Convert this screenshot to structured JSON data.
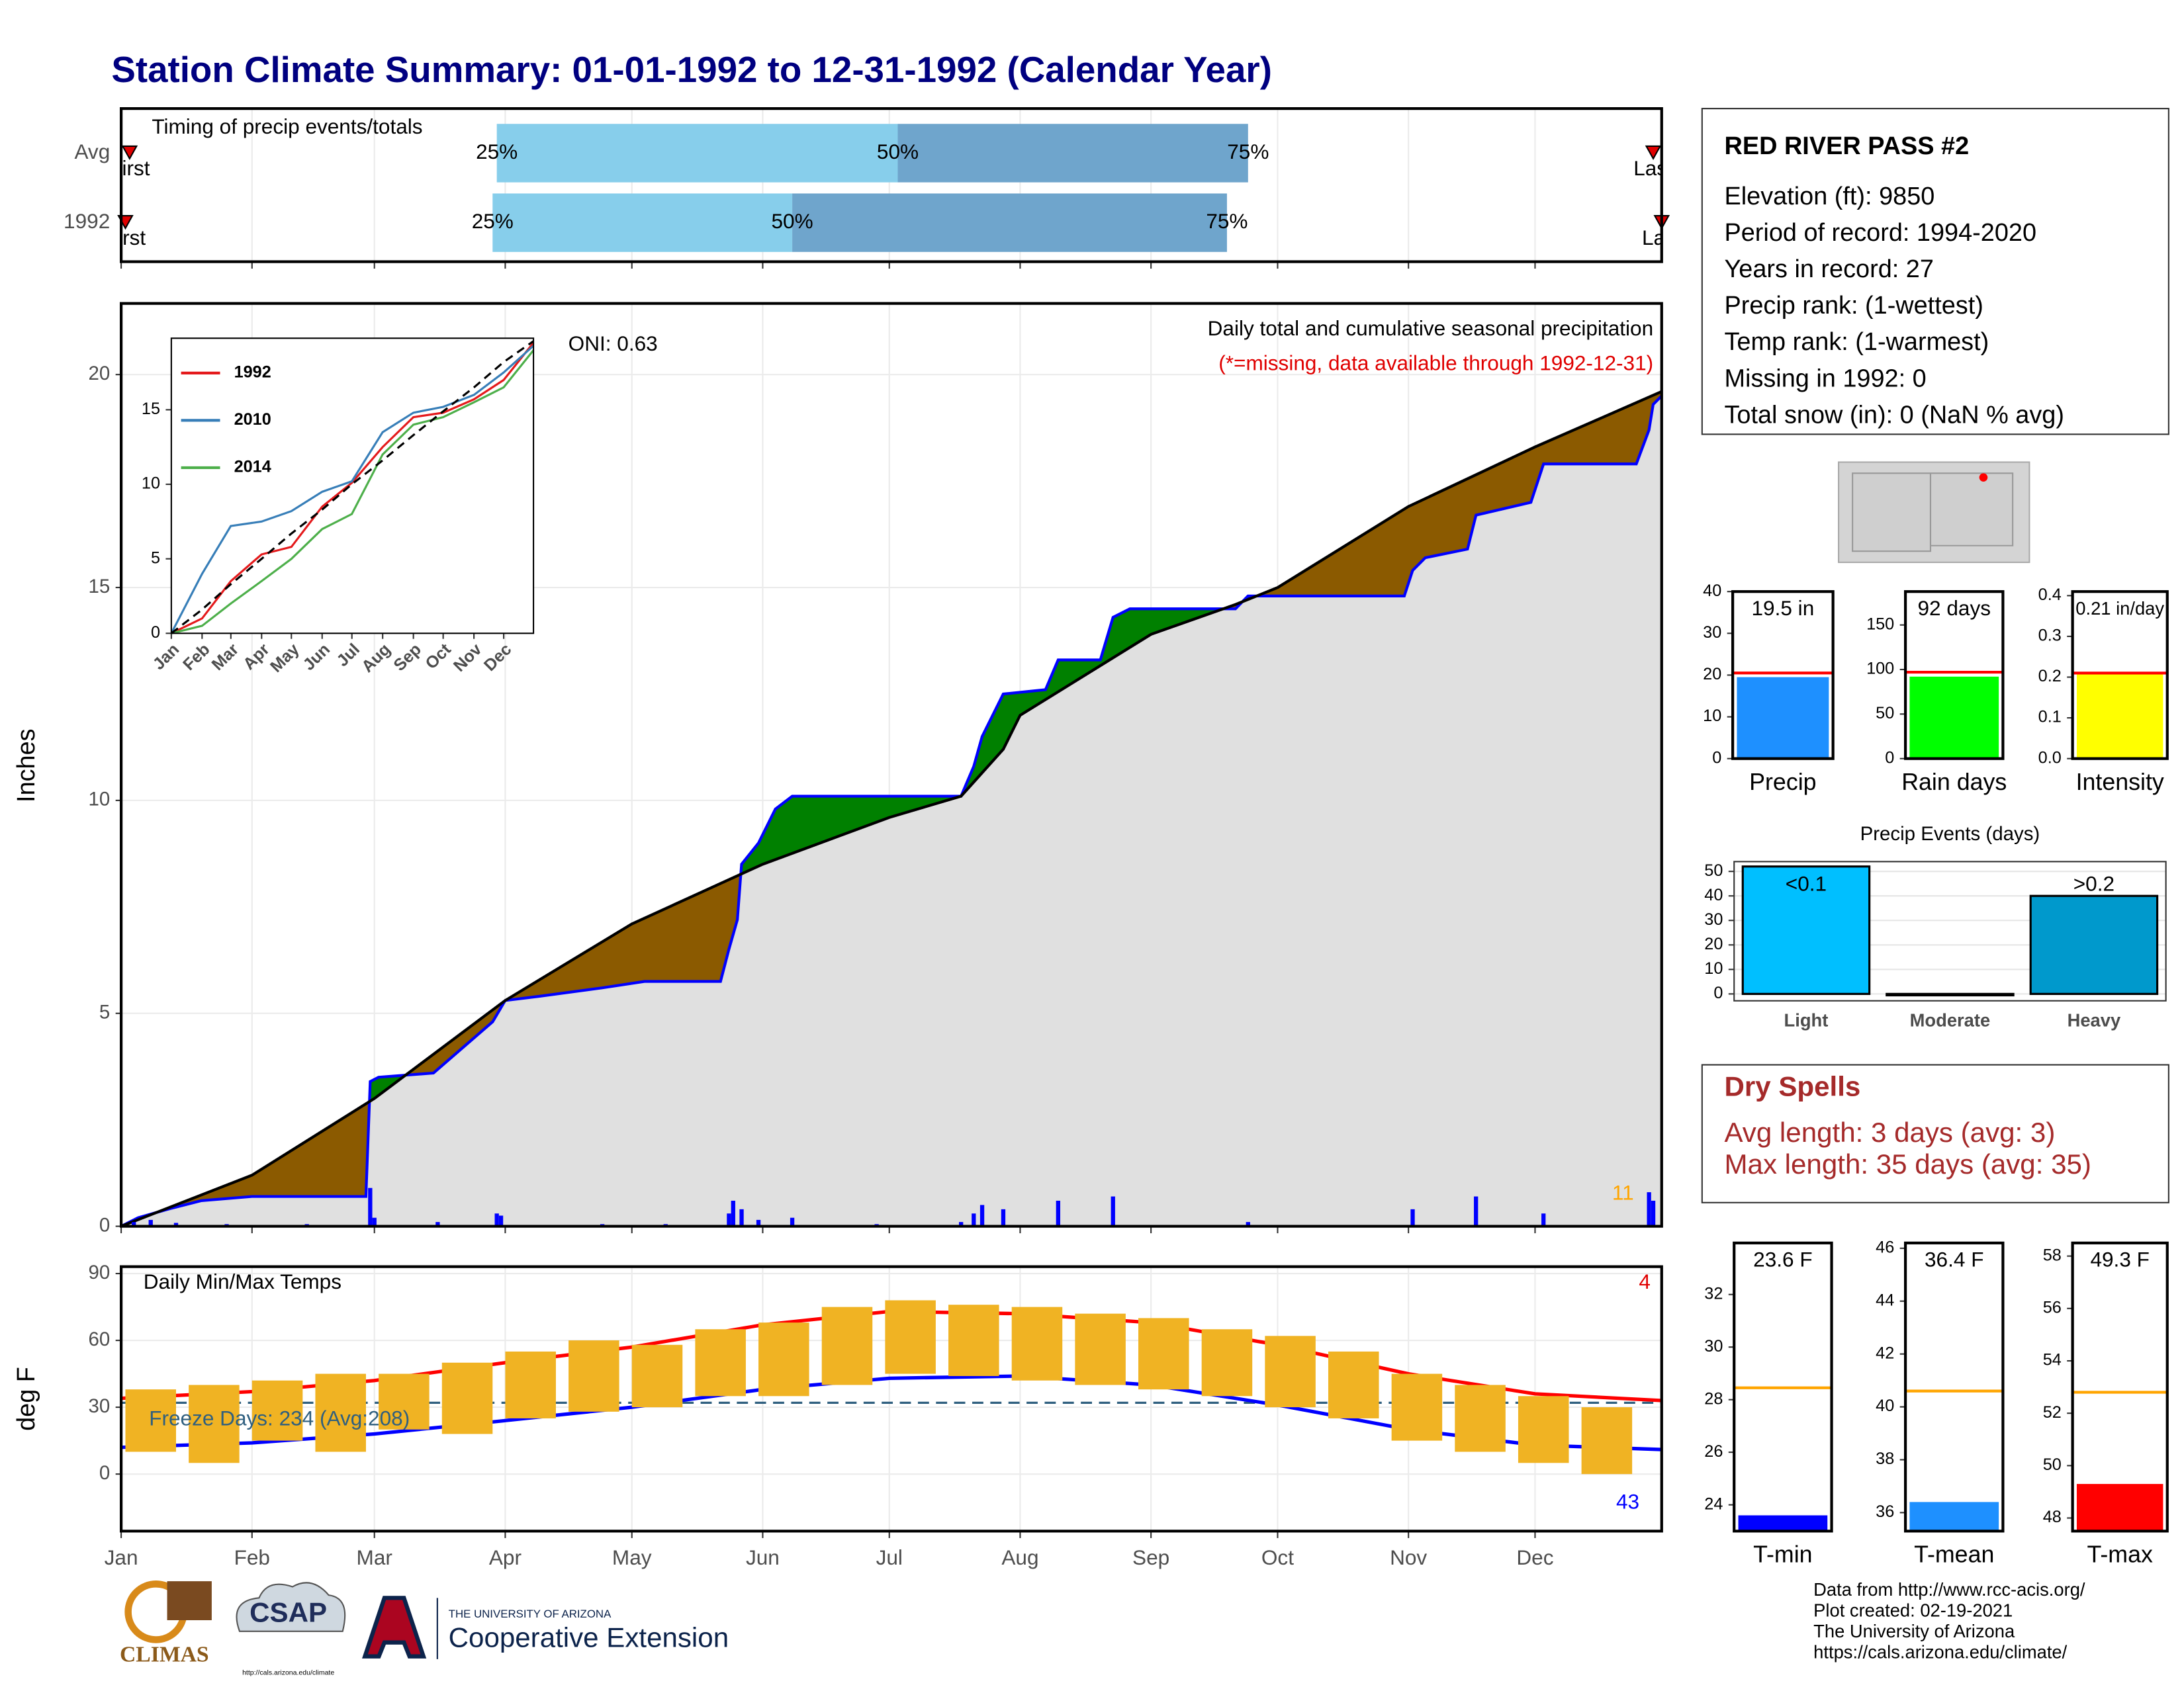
{
  "title": "Station Climate Summary: 01-01-1992 to 12-31-1992 (Calendar Year)",
  "chart_data": [
    {
      "type": "timeline",
      "title": "Timing of precip events/totals",
      "levels": [
        "25%",
        "50%",
        "75%"
      ],
      "rows": [
        {
          "name": "Avg",
          "values": [
            90,
            185,
            268
          ],
          "first": 3,
          "last": 364
        },
        {
          "name": "1992",
          "values": [
            89,
            160,
            263
          ],
          "first": 2,
          "last": 366
        }
      ],
      "first_label": "First",
      "last_label": "Last",
      "colors": [
        "#87ceeb",
        "#6fa5cc"
      ],
      "xlim": [
        1,
        366
      ],
      "xticks": [
        1,
        32,
        61,
        92,
        122,
        153,
        183,
        214,
        245,
        275,
        306,
        336
      ]
    },
    {
      "type": "cumulative",
      "ylabel": "Inches",
      "xlim": [
        1,
        366
      ],
      "ylim": [
        0,
        21.67
      ],
      "yticks": [
        0,
        5,
        10,
        15,
        20
      ],
      "xticks": [
        1,
        32,
        61,
        92,
        122,
        153,
        183,
        214,
        245,
        275,
        306,
        336
      ],
      "grid": true,
      "above_color": "#008000",
      "below_color": "#8b5a00",
      "series": [
        {
          "color": "#0000ff",
          "x": [
            1,
            5,
            12,
            20,
            32,
            59,
            60,
            62,
            75,
            89,
            92,
            100,
            115,
            125,
            143,
            145,
            147,
            148,
            152,
            156,
            160,
            200,
            203,
            205,
            210,
            220,
            223,
            233,
            236,
            240,
            265,
            268,
            305,
            307,
            310,
            320,
            322,
            335,
            338,
            360,
            363,
            364,
            366
          ],
          "values": [
            0,
            0.2,
            0.4,
            0.6,
            0.7,
            0.7,
            3.4,
            3.5,
            3.6,
            4.8,
            5.3,
            5.4,
            5.6,
            5.75,
            5.75,
            6.5,
            7.2,
            8.5,
            9.0,
            9.8,
            10.1,
            10.1,
            10.8,
            11.5,
            12.5,
            12.6,
            13.3,
            13.3,
            14.3,
            14.5,
            14.5,
            14.8,
            14.8,
            15.4,
            15.7,
            15.9,
            16.7,
            17.0,
            17.9,
            17.9,
            18.7,
            19.3,
            19.5
          ]
        },
        {
          "color": "#000000",
          "x": [
            1,
            32,
            61,
            92,
            122,
            153,
            183,
            200,
            210,
            214,
            245,
            265,
            275,
            306,
            336,
            366
          ],
          "values": [
            0,
            1.2,
            3.0,
            5.3,
            7.1,
            8.5,
            9.6,
            10.1,
            11.2,
            12.0,
            13.9,
            14.6,
            15.0,
            16.9,
            18.3,
            19.6
          ]
        }
      ],
      "daily": {
        "color": "#0000ff",
        "x": [
          4,
          8,
          14,
          26,
          45,
          60,
          61,
          76,
          90,
          91,
          115,
          130,
          145,
          146,
          148,
          152,
          160,
          180,
          200,
          203,
          205,
          210,
          223,
          236,
          268,
          307,
          322,
          338,
          363,
          364
        ],
        "values": [
          0.1,
          0.15,
          0.08,
          0.05,
          0.05,
          0.9,
          0.2,
          0.1,
          0.3,
          0.25,
          0.05,
          0.05,
          0.3,
          0.6,
          0.4,
          0.15,
          0.2,
          0.05,
          0.1,
          0.3,
          0.5,
          0.4,
          0.6,
          0.7,
          0.1,
          0.4,
          0.7,
          0.3,
          0.8,
          0.6
        ]
      },
      "annotations": {
        "oni": {
          "text": "ONI: 0.63",
          "color": "#000000"
        },
        "subtitle": {
          "text": "Daily total and cumulative seasonal precipitation",
          "color": "#000000"
        },
        "note": {
          "text": "(*=missing, data available through 1992-12-31)",
          "color": "#e00000"
        },
        "count": {
          "text": "11",
          "color": "#ffa500"
        }
      }
    },
    {
      "type": "line",
      "legend": "top-left",
      "xlim": [
        1,
        366
      ],
      "ylim": [
        0,
        19.8
      ],
      "yticks": [
        0,
        5,
        10,
        15
      ],
      "xticks": [
        {
          "value": 1,
          "label": "Jan"
        },
        {
          "value": 32,
          "label": "Feb"
        },
        {
          "value": 61,
          "label": "Mar"
        },
        {
          "value": 92,
          "label": "Apr"
        },
        {
          "value": 122,
          "label": "May"
        },
        {
          "value": 153,
          "label": "Jun"
        },
        {
          "value": 183,
          "label": "Jul"
        },
        {
          "value": 214,
          "label": "Aug"
        },
        {
          "value": 245,
          "label": "Sep"
        },
        {
          "value": 275,
          "label": "Oct"
        },
        {
          "value": 306,
          "label": "Nov"
        },
        {
          "value": 336,
          "label": "Dec"
        }
      ],
      "x": [
        1,
        32,
        61,
        92,
        122,
        153,
        183,
        214,
        245,
        275,
        306,
        336,
        366
      ],
      "series": [
        {
          "name": "1992",
          "color": "#e41a1c",
          "values": [
            0,
            1,
            3.5,
            5.3,
            5.8,
            8.5,
            10.1,
            12.5,
            14.5,
            14.8,
            15.7,
            17.0,
            19.5
          ]
        },
        {
          "name": "2010",
          "color": "#377eb8",
          "values": [
            0,
            4,
            7.2,
            7.5,
            8.2,
            9.5,
            10.2,
            13.5,
            14.8,
            15.2,
            16.0,
            17.5,
            19.3
          ]
        },
        {
          "name": "2014",
          "color": "#4daf4a",
          "values": [
            0,
            0.5,
            2,
            3.5,
            5,
            7,
            8,
            12,
            14,
            14.5,
            15.5,
            16.5,
            19.0
          ]
        },
        {
          "color": "#000000",
          "dashed": true,
          "values": [
            0,
            1.6,
            3.3,
            5.0,
            6.7,
            8.3,
            10,
            11.6,
            13.3,
            14.9,
            16.5,
            18.2,
            19.6
          ]
        }
      ]
    },
    {
      "type": "temps",
      "title": "Daily Min/Max Temps",
      "ylabel": "deg F",
      "xlim": [
        1,
        366
      ],
      "ylim": [
        -25.6,
        93.1
      ],
      "yticks": [
        0,
        30,
        60,
        90
      ],
      "grid": true,
      "xticks": [
        {
          "value": 1,
          "label": "Jan"
        },
        {
          "value": 32,
          "label": "Feb"
        },
        {
          "value": 61,
          "label": "Mar"
        },
        {
          "value": 92,
          "label": "Apr"
        },
        {
          "value": 122,
          "label": "May"
        },
        {
          "value": 153,
          "label": "Jun"
        },
        {
          "value": 183,
          "label": "Jul"
        },
        {
          "value": 214,
          "label": "Aug"
        },
        {
          "value": 245,
          "label": "Sep"
        },
        {
          "value": 275,
          "label": "Oct"
        },
        {
          "value": 306,
          "label": "Nov"
        },
        {
          "value": 336,
          "label": "Dec"
        }
      ],
      "ranges": {
        "color": "#f0b323",
        "x": [
          8,
          23,
          38,
          53,
          68,
          83,
          98,
          113,
          128,
          143,
          158,
          173,
          188,
          203,
          218,
          233,
          248,
          263,
          278,
          293,
          308,
          323,
          338,
          353
        ],
        "low": [
          10,
          5,
          15,
          10,
          20,
          18,
          25,
          28,
          30,
          35,
          35,
          40,
          45,
          44,
          42,
          40,
          38,
          35,
          30,
          25,
          15,
          10,
          5,
          0
        ],
        "high": [
          38,
          40,
          42,
          45,
          45,
          50,
          55,
          60,
          58,
          65,
          68,
          75,
          78,
          76,
          75,
          72,
          70,
          65,
          62,
          55,
          45,
          40,
          35,
          30
        ]
      },
      "series": [
        {
          "color": "#ff0000",
          "x": [
            1,
            32,
            61,
            92,
            122,
            153,
            183,
            214,
            245,
            275,
            306,
            336,
            366
          ],
          "values": [
            34,
            37,
            42,
            50,
            57,
            67,
            73,
            72,
            68,
            58,
            45,
            36,
            33
          ]
        },
        {
          "color": "#0000ff",
          "x": [
            1,
            32,
            61,
            92,
            122,
            153,
            183,
            214,
            245,
            275,
            306,
            336,
            366
          ],
          "values": [
            12,
            14,
            18,
            24,
            30,
            38,
            43,
            44,
            40,
            31,
            20,
            13,
            11
          ]
        }
      ],
      "freeze": {
        "value": 32,
        "label": "Freeze Days: 234 (Avg:208)",
        "color": "#2f5f7f"
      },
      "annotations": {
        "hot": {
          "text": "4",
          "color": "#e00000"
        },
        "cold": {
          "text": "43",
          "color": "#0000ff"
        }
      }
    },
    {
      "type": "bar",
      "categories": [
        "Precip"
      ],
      "values": [
        19.5
      ],
      "value_labels": [
        "19.5 in"
      ],
      "average": 20.5,
      "average_color": "#ff0000",
      "color": "#1e90ff",
      "ylim": [
        0,
        40
      ],
      "yticks": [
        0,
        10,
        20,
        30,
        40
      ]
    },
    {
      "type": "bar",
      "categories": [
        "Rain days"
      ],
      "values": [
        92
      ],
      "value_labels": [
        "92 days"
      ],
      "average": 97,
      "average_color": "#ff0000",
      "color": "#00ff00",
      "ylim": [
        0,
        187.5
      ],
      "yticks": [
        0,
        50,
        100,
        150
      ]
    },
    {
      "type": "bar",
      "categories": [
        "Intensity"
      ],
      "values": [
        0.21
      ],
      "value_labels": [
        "0.21 in/day"
      ],
      "average": 0.21,
      "average_color": "#ff0000",
      "color": "#ffff00",
      "ylim": [
        0,
        0.41
      ],
      "yticks": [
        {
          "value": 0,
          "label": "0.0"
        },
        0.1,
        0.2,
        0.3,
        0.4
      ]
    },
    {
      "type": "bar",
      "title": "Precip Events (days)",
      "categories": [
        "Light",
        "Moderate",
        "Heavy"
      ],
      "values": [
        52,
        0,
        40
      ],
      "bin_labels": [
        "<0.1",
        null,
        ">0.2"
      ],
      "color": [
        "#00bfff",
        "#00bfff",
        "#0099cc"
      ],
      "grid": true,
      "ylim": [
        -2.8,
        54
      ],
      "yticks": [
        0,
        10,
        20,
        30,
        40,
        50
      ]
    },
    {
      "type": "bar",
      "categories": [
        "T-min"
      ],
      "values": [
        23.6
      ],
      "value_labels": [
        "23.6 F"
      ],
      "average": 28.45,
      "average_color": "#ffa500",
      "color": "#0000ff",
      "ylim": [
        23,
        33.96
      ],
      "yticks": [
        24,
        26,
        28,
        30,
        32
      ]
    },
    {
      "type": "bar",
      "categories": [
        "T-mean"
      ],
      "values": [
        36.4
      ],
      "value_labels": [
        "36.4 F"
      ],
      "average": 40.6,
      "average_color": "#ffa500",
      "color": "#1e90ff",
      "ylim": [
        35.3,
        46.2
      ],
      "yticks": [
        36,
        38,
        40,
        42,
        44,
        46
      ]
    },
    {
      "type": "bar",
      "categories": [
        "T-max"
      ],
      "values": [
        49.3
      ],
      "value_labels": [
        "49.3 F"
      ],
      "average": 52.8,
      "average_color": "#ffa500",
      "color": "#ff0000",
      "ylim": [
        47.5,
        58.5
      ],
      "yticks": [
        48,
        50,
        52,
        54,
        56,
        58
      ]
    }
  ],
  "station": {
    "name": "RED RIVER PASS #2",
    "lines": [
      "Elevation (ft): 9850",
      "Period of record: 1994-2020",
      "Years in record: 27",
      "Precip rank:  (1-wettest)",
      "Temp rank:  (1-warmest)",
      "Missing in 1992: 0",
      "Total snow (in): 0 (NaN % avg)"
    ]
  },
  "dry_spells": {
    "title": "Dry Spells",
    "lines": [
      "Avg length: 3 days (avg: 3)",
      "Max length: 35 days (avg: 35)"
    ]
  },
  "footer": {
    "lines": [
      "Data from http://www.rcc-acis.org/",
      "Plot created: 02-19-2021",
      "The University of Arizona",
      "https://cals.arizona.edu/climate/"
    ]
  },
  "logos": {
    "climas": "CLIMAS",
    "csap": "CSAP",
    "csap_url": "http://cals.arizona.edu/climate",
    "university": "THE UNIVERSITY OF ARIZONA",
    "extension": "Cooperative Extension"
  }
}
